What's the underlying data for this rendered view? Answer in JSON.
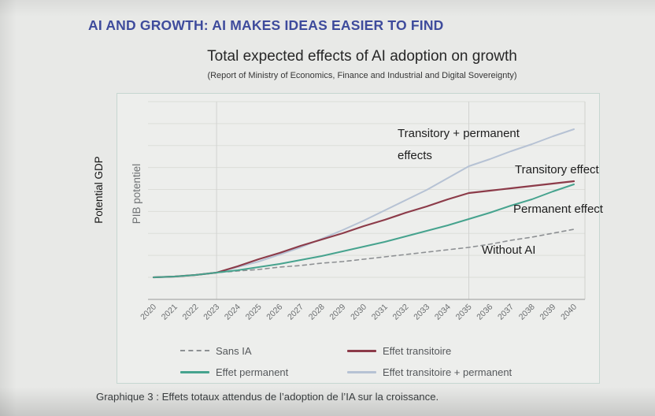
{
  "slide": {
    "title": "AI AND GROWTH: AI MAKES IDEAS EASIER TO FIND",
    "caption": "Graphique 3 : Effets totaux attendus de l’adoption de l’IA sur la croissance."
  },
  "chart": {
    "title": "Total expected effects of AI adoption on growth",
    "subtitle": "(Report of Ministry of Economics, Finance and Industrial and Digital Sovereignty)",
    "y_axis_label_en": "Potential GDP",
    "y_axis_label_fr": "PIB potentiel",
    "annotations": {
      "trans_perm": "Transitory + permanent effects",
      "transitory": "Transitory effect",
      "permanent": "Permanent effect",
      "without_ai": "Without AI"
    },
    "legend": [
      {
        "label": "Sans IA",
        "style": "dashed",
        "color": "#8d9093"
      },
      {
        "label": "Effet transitoire",
        "style": "solid",
        "color": "#8c3b49"
      },
      {
        "label": "Effet permanent",
        "style": "solid",
        "color": "#46a38e"
      },
      {
        "label": "Effet transitoire + permanent",
        "style": "solid",
        "color": "#b6c2d4"
      }
    ]
  },
  "chart_data": {
    "type": "line",
    "title": "Total expected effects of AI adoption on growth",
    "xlabel": "",
    "ylabel": "PIB potentiel (Potential GDP)",
    "x": [
      2020,
      2021,
      2022,
      2023,
      2024,
      2025,
      2026,
      2027,
      2028,
      2029,
      2030,
      2031,
      2032,
      2033,
      2034,
      2035,
      2036,
      2037,
      2038,
      2039,
      2040
    ],
    "ylim": [
      99.5,
      120
    ],
    "y_axis_numeric_labels": false,
    "gridlines": {
      "horizontal": true,
      "vertical_years": [
        2023,
        2035
      ]
    },
    "legend_position": "bottom",
    "units": "potential GDP index, 2020 = 100 (estimated from unlabeled axis)",
    "series": [
      {
        "id": "sans-ia",
        "name": "Sans IA",
        "color": "#8d9093",
        "dash": true,
        "width": 1.6,
        "values": [
          100.0,
          100.1,
          100.3,
          100.6,
          100.8,
          101.0,
          101.3,
          101.5,
          101.8,
          102.0,
          102.3,
          102.6,
          102.9,
          103.2,
          103.5,
          103.8,
          104.2,
          104.7,
          105.1,
          105.6,
          106.1
        ]
      },
      {
        "id": "effet-transitoire-plus-permanent",
        "name": "Effet transitoire + permanent",
        "color": "#b6c2d4",
        "dash": false,
        "width": 2,
        "values": [
          100.0,
          100.1,
          100.3,
          100.6,
          101.3,
          102.0,
          102.9,
          103.8,
          104.9,
          106.0,
          107.2,
          108.5,
          109.8,
          111.1,
          112.6,
          114.1,
          115.0,
          116.0,
          116.9,
          117.9,
          118.8
        ]
      },
      {
        "id": "effet-transitoire",
        "name": "Effet transitoire",
        "color": "#8c3b49",
        "dash": false,
        "width": 2.2,
        "values": [
          100.0,
          100.1,
          100.3,
          100.6,
          101.4,
          102.3,
          103.1,
          104.0,
          104.8,
          105.6,
          106.5,
          107.3,
          108.2,
          109.0,
          109.9,
          110.7,
          111.0,
          111.3,
          111.6,
          111.9,
          112.2
        ]
      },
      {
        "id": "effet-permanent",
        "name": "Effet permanent",
        "color": "#46a38e",
        "dash": false,
        "width": 2,
        "values": [
          100.0,
          100.1,
          100.3,
          100.6,
          100.9,
          101.3,
          101.7,
          102.2,
          102.7,
          103.3,
          103.9,
          104.5,
          105.2,
          105.9,
          106.6,
          107.4,
          108.2,
          109.1,
          109.9,
          110.9,
          111.8
        ]
      }
    ]
  }
}
